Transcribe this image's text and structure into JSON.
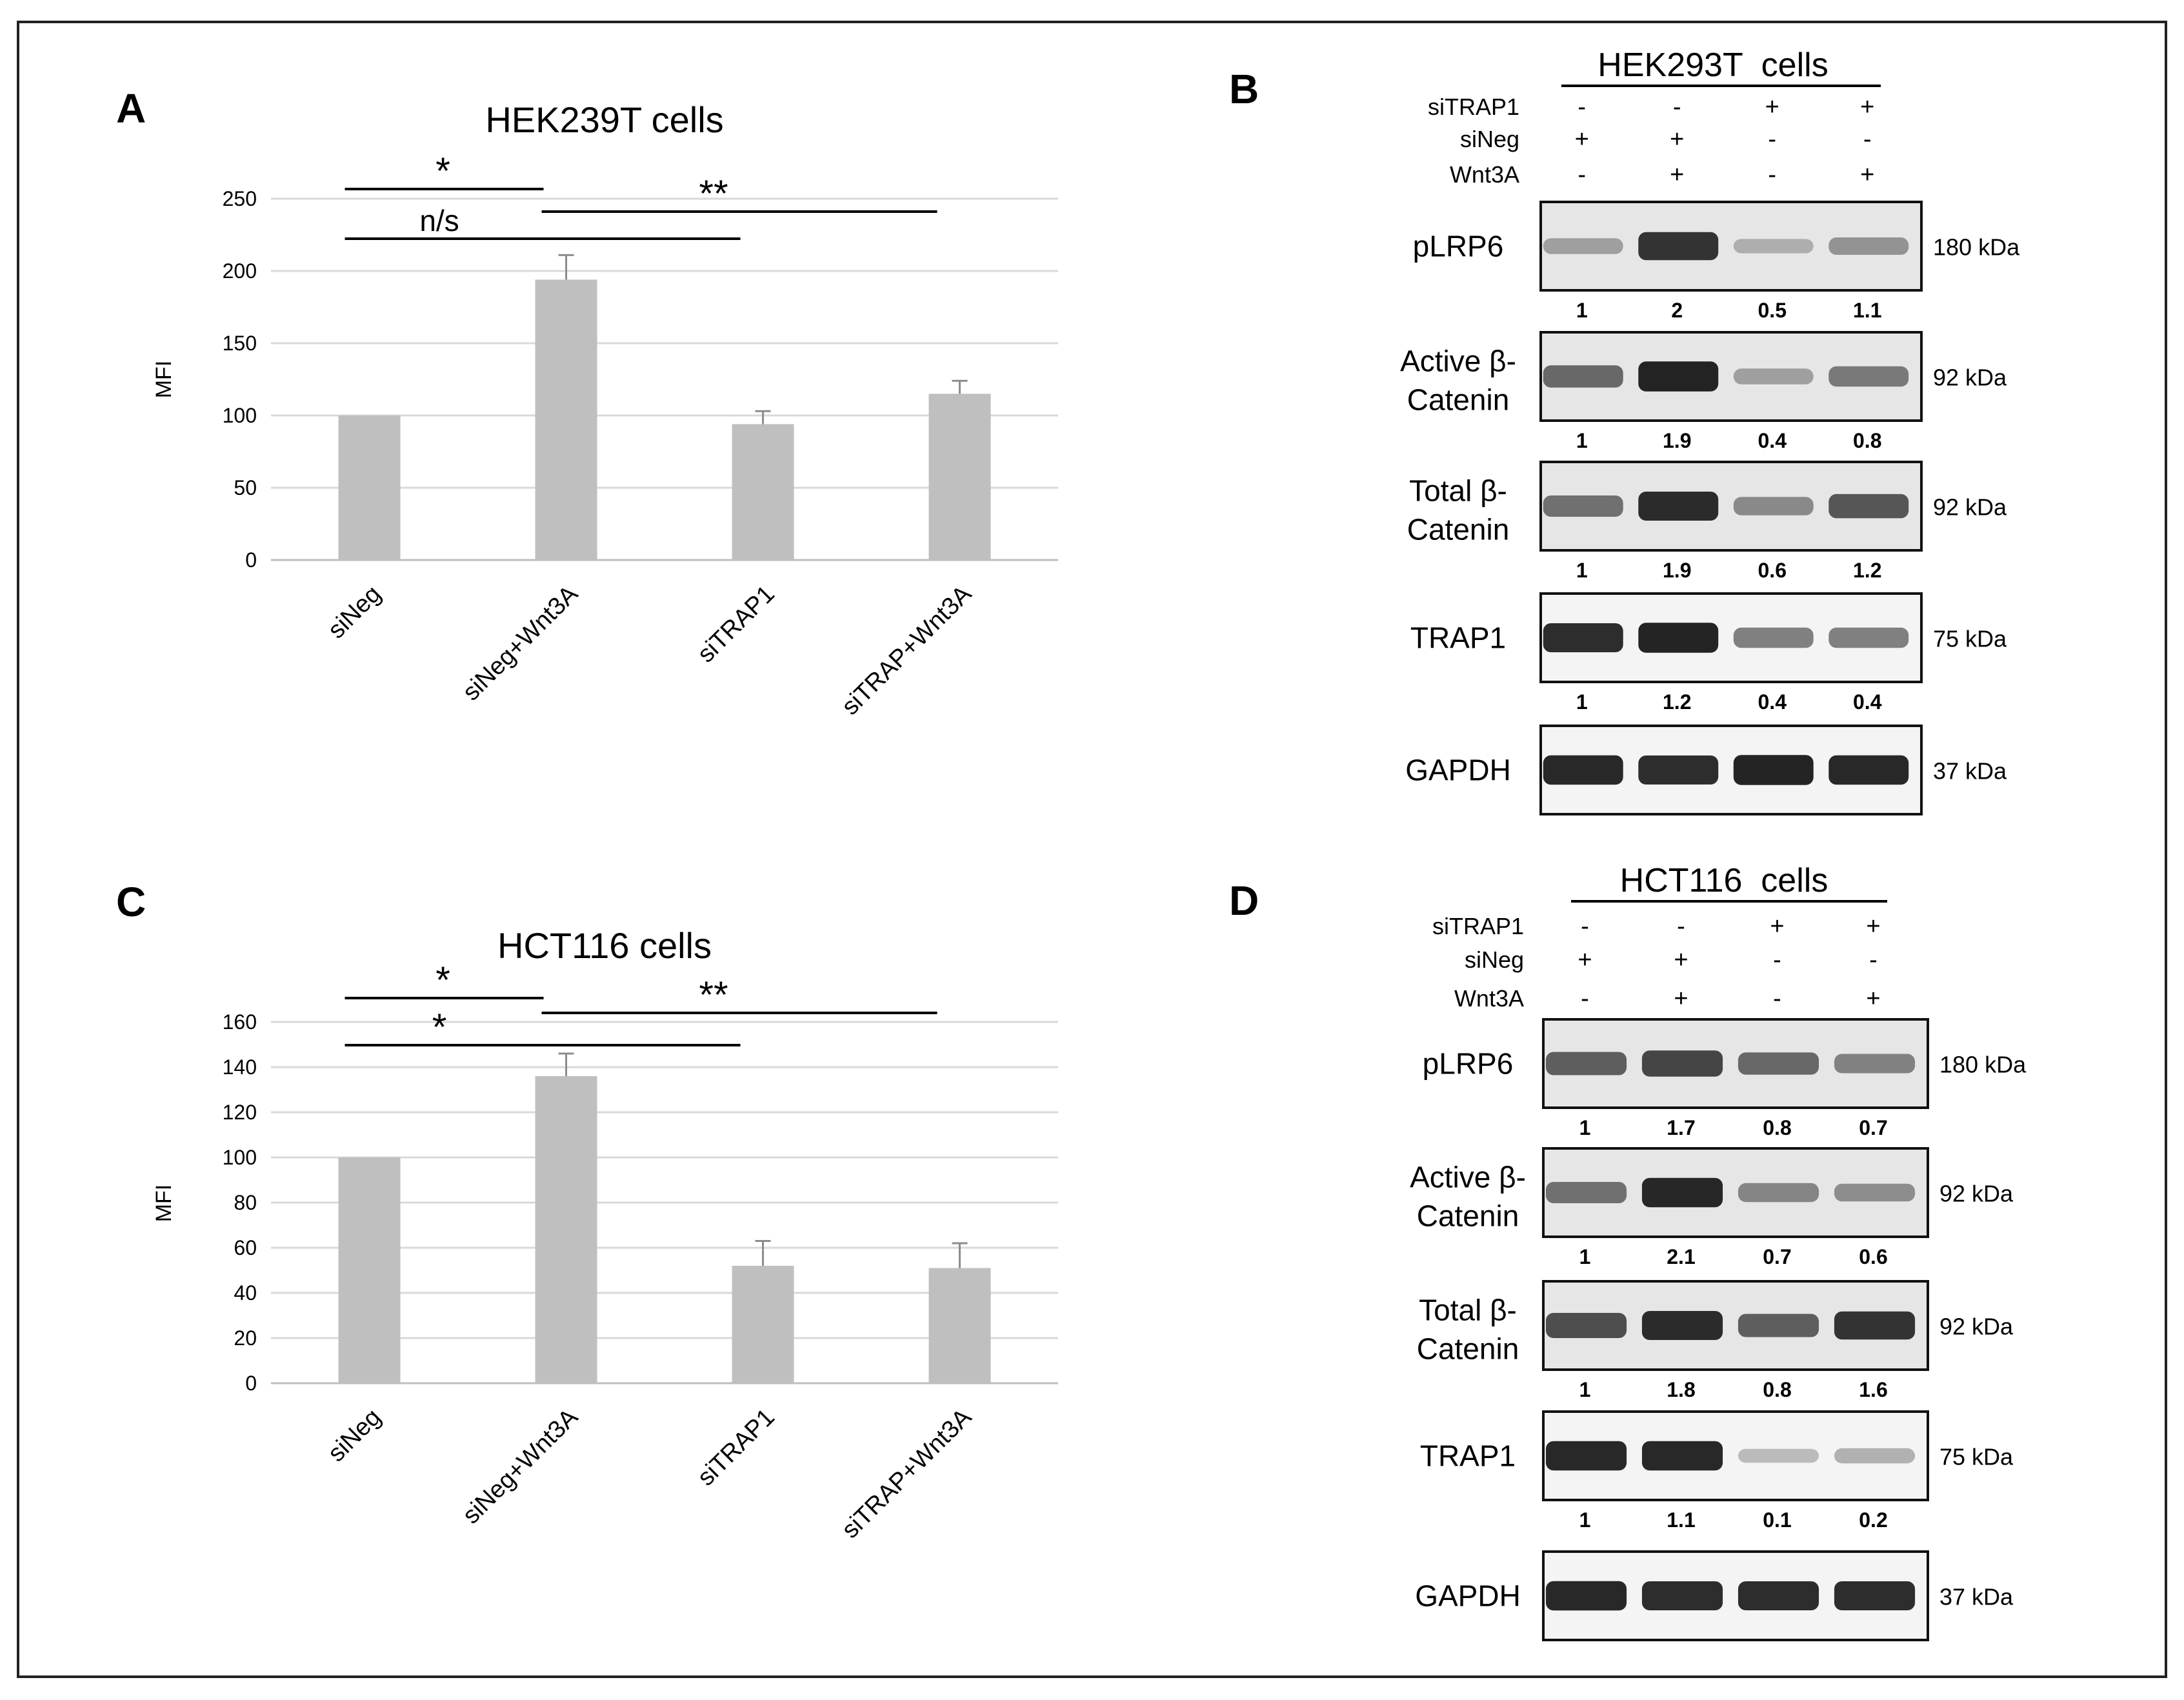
{
  "panels": {
    "A": {
      "letter": "A",
      "chart_data": {
        "type": "bar",
        "title": "HEK239T cells",
        "ylabel": "MFI",
        "xlabel": "",
        "categories": [
          "siNeg",
          "siNeg+Wnt3A",
          "siTRAP1",
          "siTRAP+Wnt3A"
        ],
        "values": [
          100,
          194,
          94,
          115
        ],
        "errors": [
          0,
          17,
          9,
          9
        ],
        "ylim": [
          0,
          250
        ],
        "yticks": [
          0,
          50,
          100,
          150,
          200,
          250
        ],
        "grid": true,
        "bar_color": "#bfbfbf",
        "significance": [
          {
            "from": 0,
            "to": 1,
            "label": "*",
            "level": 3
          },
          {
            "from": 0,
            "to": 2,
            "label": "n/s",
            "level": 1
          },
          {
            "from": 1,
            "to": 3,
            "label": "**",
            "level": 2
          }
        ]
      }
    },
    "C": {
      "letter": "C",
      "chart_data": {
        "type": "bar",
        "title": "HCT116 cells",
        "ylabel": "MFI",
        "xlabel": "",
        "categories": [
          "siNeg",
          "siNeg+Wnt3A",
          "siTRAP1",
          "siTRAP+Wnt3A"
        ],
        "values": [
          100,
          136,
          52,
          51
        ],
        "errors": [
          0,
          10,
          11,
          11
        ],
        "ylim": [
          0,
          160
        ],
        "yticks": [
          0,
          20,
          40,
          60,
          80,
          100,
          120,
          140,
          160
        ],
        "grid": true,
        "bar_color": "#bfbfbf",
        "significance": [
          {
            "from": 0,
            "to": 1,
            "label": "*",
            "level": 3
          },
          {
            "from": 0,
            "to": 2,
            "label": "*",
            "level": 1
          },
          {
            "from": 1,
            "to": 3,
            "label": "**",
            "level": 2
          }
        ]
      }
    },
    "B": {
      "letter": "B",
      "title": "HEK293T  cells",
      "conditions": [
        {
          "label": "siTRAP1",
          "marks": [
            "-",
            "-",
            "+",
            "+"
          ]
        },
        {
          "label": "siNeg",
          "marks": [
            "+",
            "+",
            "-",
            "-"
          ]
        },
        {
          "label": "Wnt3A",
          "marks": [
            "-",
            "+",
            "-",
            "+"
          ]
        }
      ],
      "blots": [
        {
          "name": "pLRP6",
          "size": "180 kDa",
          "quant": [
            "1",
            "2",
            "0.5",
            "1.1"
          ],
          "intensity": [
            0.22,
            0.85,
            0.14,
            0.3
          ]
        },
        {
          "name": "Active β-\nCatenin",
          "size": "92 kDa",
          "quant": [
            "1",
            "1.9",
            "0.4",
            "0.8"
          ],
          "intensity": [
            0.55,
            0.95,
            0.22,
            0.45
          ]
        },
        {
          "name": "Total β-\nCatenin",
          "size": "92 kDa",
          "quant": [
            "1",
            "1.9",
            "0.6",
            "1.2"
          ],
          "intensity": [
            0.5,
            0.9,
            0.35,
            0.65
          ]
        },
        {
          "name": "TRAP1",
          "size": "75 kDa",
          "quant": [
            "1",
            "1.2",
            "0.4",
            "0.4"
          ],
          "intensity": [
            0.9,
            0.95,
            0.45,
            0.45
          ]
        },
        {
          "name": "GAPDH",
          "size": "37 kDa",
          "quant": [],
          "intensity": [
            0.92,
            0.9,
            0.95,
            0.92
          ]
        }
      ]
    },
    "D": {
      "letter": "D",
      "title": "HCT116  cells",
      "conditions": [
        {
          "label": "siTRAP1",
          "marks": [
            "-",
            "-",
            "+",
            "+"
          ]
        },
        {
          "label": "siNeg",
          "marks": [
            "+",
            "+",
            "-",
            "-"
          ]
        },
        {
          "label": "Wnt3A",
          "marks": [
            "-",
            "+",
            "-",
            "+"
          ]
        }
      ],
      "blots": [
        {
          "name": "pLRP6",
          "size": "180 kDa",
          "quant": [
            "1",
            "1.7",
            "0.8",
            "0.7"
          ],
          "intensity": [
            0.6,
            0.75,
            0.55,
            0.4
          ]
        },
        {
          "name": "Active β-\nCatenin",
          "size": "92 kDa",
          "quant": [
            "1",
            "2.1",
            "0.7",
            "0.6"
          ],
          "intensity": [
            0.5,
            0.92,
            0.38,
            0.32
          ]
        },
        {
          "name": "Total β-\nCatenin",
          "size": "92 kDa",
          "quant": [
            "1",
            "1.8",
            "0.8",
            "1.6"
          ],
          "intensity": [
            0.7,
            0.9,
            0.6,
            0.85
          ]
        },
        {
          "name": "TRAP1",
          "size": "75 kDa",
          "quant": [
            "1",
            "1.1",
            "0.1",
            "0.2"
          ],
          "intensity": [
            0.92,
            0.92,
            0.12,
            0.18
          ]
        },
        {
          "name": "GAPDH",
          "size": "37 kDa",
          "quant": [],
          "intensity": [
            0.92,
            0.9,
            0.9,
            0.9
          ]
        }
      ]
    }
  }
}
